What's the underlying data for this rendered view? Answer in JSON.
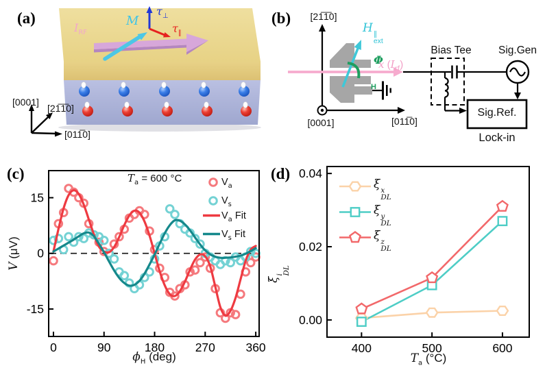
{
  "panel_labels": {
    "a": "(a)",
    "b": "(b)",
    "c": "(c)",
    "d": "(d)"
  },
  "panel_a": {
    "current_label": {
      "base": "I",
      "sub": "RF"
    },
    "magnetization_label": "M",
    "torque_perp": {
      "base": "τ",
      "sub": "⊥"
    },
    "torque_parallel": {
      "base": "τ",
      "sub": "∥"
    },
    "axis_up": "[0001]",
    "axis_diag": "[21̅1̅0]",
    "axis_right": "[011̅0]"
  },
  "panel_b": {
    "axis_vertical": "[21̅1̅0]",
    "axis_out": "[0001]",
    "axis_horizontal": "[011̅0]",
    "field_label": {
      "base": "H",
      "sup": "∥",
      "sub": "ext"
    },
    "angle_label": {
      "base": "Φ",
      "sub": "H"
    },
    "rf_axis_label": {
      "x": "x",
      "open": " (",
      "i": "I",
      "sub": "rf",
      "close": ")"
    },
    "bias_tee_label": "Bias Tee",
    "sig_gen_label": "Sig.Gen",
    "sig_ref_label": "Sig.Ref.",
    "lock_in_label": "Lock-in"
  },
  "panel_c": {
    "annotation": {
      "base": "T",
      "sub": "a",
      "rest": " = 600 °C"
    },
    "ylabel": {
      "base": "V",
      "rest": " (μV)"
    },
    "xlabel": {
      "base": "ϕ",
      "sub": "H",
      "rest": " (deg)"
    },
    "legend": [
      {
        "base": "V",
        "sub": "a",
        "rest": ""
      },
      {
        "base": "V",
        "sub": "s",
        "rest": ""
      },
      {
        "base": "V",
        "sub": "a",
        "rest": " Fit"
      },
      {
        "base": "V",
        "sub": "s",
        "rest": " Fit"
      }
    ]
  },
  "panel_d": {
    "ylabel": {
      "base": "ξ",
      "sup": "i",
      "sub": "DL"
    },
    "xlabel": {
      "base": "T",
      "sub": "a",
      "rest": " (°C)"
    },
    "legend": [
      {
        "base": "ξ",
        "sup": "x",
        "sub": "DL"
      },
      {
        "base": "ξ",
        "sup": "y",
        "sub": "DL"
      },
      {
        "base": "ξ",
        "sup": "z",
        "sub": "DL"
      }
    ]
  },
  "chart_data": [
    {
      "panel": "c",
      "type": "scatter",
      "annotation": "T_a = 600 °C",
      "xlabel": "phi_H (deg)",
      "ylabel": "V (uV)",
      "xticks": [
        0,
        90,
        180,
        270,
        360
      ],
      "yticks": [
        {
          "v": 15,
          "label": "15"
        },
        {
          "v": 0,
          "label": "0"
        },
        {
          "v": -15,
          "label": "-15"
        }
      ],
      "xlim": [
        -8.5,
        366
      ],
      "ylim": [
        -22.4,
        22.3
      ],
      "zero_line": true,
      "legend_position": "upper right",
      "x_deg": [
        0,
        9,
        18,
        27,
        36,
        45,
        54,
        63,
        72,
        81,
        90,
        99,
        108,
        117,
        126,
        135,
        144,
        153,
        162,
        171,
        180,
        189,
        198,
        207,
        216,
        225,
        234,
        243,
        252,
        261,
        270,
        279,
        288,
        297,
        306,
        315,
        324,
        333,
        342,
        351,
        360
      ],
      "series": [
        {
          "name": "V_a",
          "kind": "scatter",
          "color": "#f5797d",
          "values": [
            -2,
            8,
            11,
            17.5,
            16.5,
            15,
            13.5,
            8,
            5,
            3,
            0.5,
            0,
            2.5,
            4.5,
            6.5,
            9.5,
            10.5,
            11.5,
            10.5,
            6,
            1,
            -4,
            -6.5,
            -10.5,
            -11.5,
            -9.5,
            -8.5,
            -5,
            -4.5,
            -2.5,
            -1,
            -4,
            -9.5,
            -16,
            -17.5,
            -16,
            -16.5,
            -11,
            -5,
            -2.5,
            -1
          ]
        },
        {
          "name": "V_s",
          "kind": "scatter",
          "color": "#74d2d4",
          "values": [
            3.5,
            4,
            1,
            4.5,
            3,
            4.5,
            4,
            5.5,
            5,
            4.5,
            3.5,
            0,
            -1.5,
            -5,
            -6,
            -8,
            -9.5,
            -8.5,
            -6.5,
            -5,
            -1.5,
            2,
            4.5,
            12,
            10.5,
            8,
            6.5,
            5.5,
            4,
            2.5,
            0,
            -1,
            -2,
            -3,
            -2,
            -2.5,
            -1,
            -2,
            -1,
            0.5,
            0
          ]
        },
        {
          "name": "V_a Fit",
          "kind": "line",
          "color": "#ee3a41",
          "values": [
            0.5,
            6.6,
            12.1,
            15.7,
            17,
            16,
            13.1,
            9.1,
            5.1,
            1.8,
            0.5,
            0.3,
            1.7,
            4.4,
            7.6,
            10.2,
            11.5,
            11,
            8.6,
            4.8,
            0,
            -4.8,
            -8.6,
            -11,
            -11.5,
            -10.2,
            -7.6,
            -4.4,
            -1.7,
            -0.3,
            -0.8,
            -3.5,
            -9,
            -14.5,
            -16.8,
            -15.5,
            -12,
            -7,
            -2,
            1,
            2
          ]
        },
        {
          "name": "V_s Fit",
          "kind": "line",
          "color": "#15888b",
          "values": [
            0.5,
            1.3,
            2.1,
            2.9,
            3.7,
            4.6,
            5.4,
            5.6,
            4.6,
            2.6,
            0.3,
            -2.2,
            -4.6,
            -6.6,
            -8,
            -8.7,
            -8.5,
            -7.4,
            -5.5,
            -3,
            -0.3,
            2.6,
            5.4,
            7.6,
            8.9,
            8.8,
            7.8,
            6.2,
            4.3,
            2.4,
            0.8,
            -0.3,
            -0.9,
            -1.2,
            -1.2,
            -1.1,
            -0.9,
            -0.6,
            -0.1,
            0.6,
            1.4
          ]
        }
      ]
    },
    {
      "panel": "d",
      "type": "line",
      "xlabel": "T_a (°C)",
      "ylabel": "xi^i_DL",
      "xticks": [
        400,
        500,
        600
      ],
      "yticks": [
        {
          "v": 0,
          "label": "0.00"
        },
        {
          "v": 0.02,
          "label": "0.02"
        },
        {
          "v": 0.04,
          "label": "0.04"
        }
      ],
      "xlim": [
        351,
        638
      ],
      "ylim": [
        -0.0047,
        0.0419
      ],
      "legend_position": "upper left",
      "x": [
        400,
        500,
        600
      ],
      "series": [
        {
          "name": "xi^x_DL",
          "marker": "hexagon",
          "color": "#fbd2a8",
          "values": [
            0.0005,
            0.002,
            0.0025
          ]
        },
        {
          "name": "xi^y_DL",
          "marker": "square",
          "color": "#4ecdc6",
          "values": [
            -0.0005,
            0.0095,
            0.027
          ]
        },
        {
          "name": "xi^z_DL",
          "marker": "pentagon",
          "color": "#f2686a",
          "values": [
            0.003,
            0.0115,
            0.031
          ]
        }
      ]
    }
  ]
}
